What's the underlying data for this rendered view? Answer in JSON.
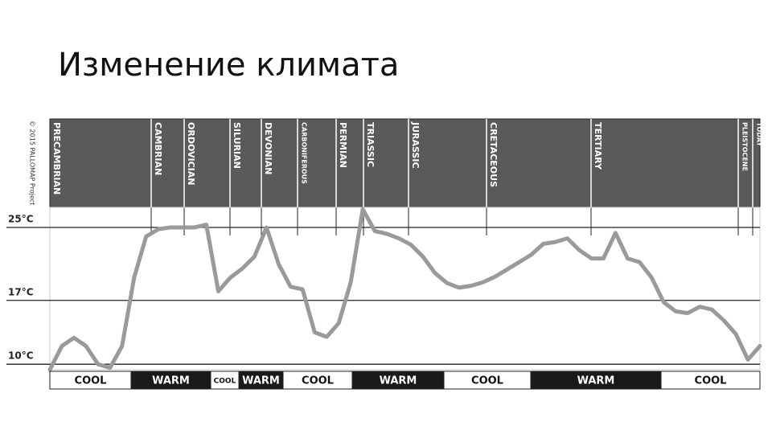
{
  "title": "Изменение климата",
  "chart_data": {
    "type": "line",
    "credit": "© 2015 PALLOMAP Project",
    "periods": [
      "PRECAMBRIAN",
      "CAMBRIAN",
      "ORDOVICIAN",
      "SILURIAN",
      "DEVONIAN",
      "CARBONIFEROUS",
      "PERMIAN",
      "TRIASSIC",
      "JURASSIC",
      "CRETACEOUS",
      "TERTIARY",
      "PLEISTOCENE",
      "TODAY"
    ],
    "climate": [
      "COOL",
      "WARM",
      "COOL",
      "WARM",
      "COOL",
      "WARM",
      "COOL",
      "WARM",
      "COOL"
    ],
    "categories": [
      null,
      null,
      null,
      null,
      null,
      null,
      null,
      null,
      null,
      null,
      null,
      null,
      null,
      null,
      null,
      null,
      null,
      null,
      null,
      null,
      null,
      null,
      null,
      null,
      null,
      null,
      null,
      null,
      null,
      null,
      null,
      null,
      null,
      null,
      null,
      null,
      null,
      null,
      null,
      null,
      null,
      null,
      null,
      null,
      null,
      null,
      null,
      null,
      null,
      null,
      null,
      null,
      null,
      null,
      null,
      null,
      null,
      null,
      null,
      null
    ],
    "series": [
      {
        "name": null,
        "color": "#9a9a9a",
        "values": [
          9.4,
          12.0,
          12.9,
          12.0,
          10.0,
          9.6,
          12.0,
          19.5,
          24.0,
          24.8,
          25.0,
          25.0,
          25.0,
          25.3,
          18.0,
          19.5,
          20.5,
          21.8,
          25.0,
          21.0,
          18.5,
          18.2,
          13.5,
          13.0,
          14.5,
          19.0,
          27.0,
          24.6,
          24.3,
          23.8,
          23.1,
          21.8,
          20.0,
          18.9,
          18.4,
          18.6,
          19.0,
          19.6,
          20.4,
          21.2,
          22.0,
          23.2,
          23.4,
          23.8,
          22.5,
          21.6,
          21.6,
          24.4,
          21.6,
          21.2,
          19.5,
          16.8,
          15.8,
          15.6,
          16.3,
          16.0,
          14.8,
          13.3,
          10.5,
          12.0
        ]
      }
    ],
    "ylim": [
      9.4,
      27.2
    ],
    "yticks": [
      {
        "value": 10,
        "label": "10°C"
      },
      {
        "value": 17,
        "label": "17°C"
      },
      {
        "value": 25,
        "label": "25°C"
      }
    ],
    "grid": true
  }
}
